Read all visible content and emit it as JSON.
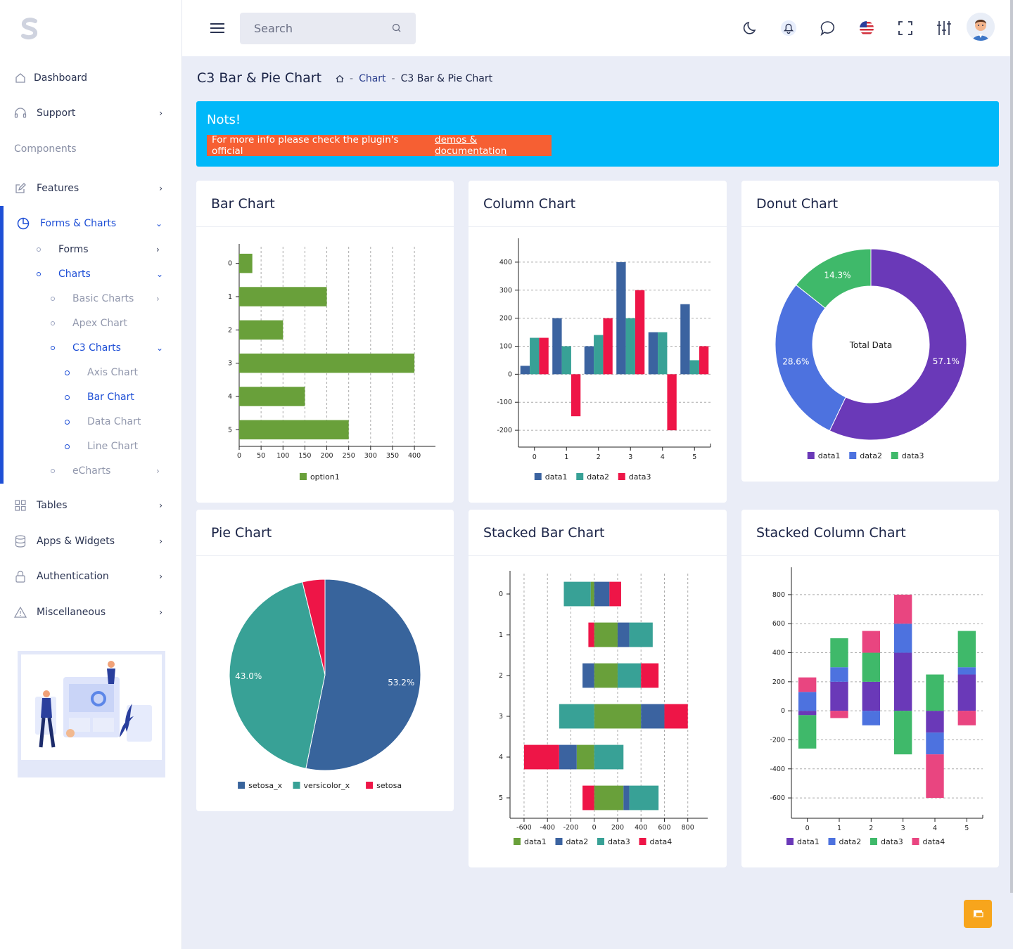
{
  "sidebar": {
    "items": {
      "dashboard": "Dashboard",
      "support": "Support",
      "components_section": "Components",
      "features": "Features",
      "forms_charts": "Forms & Charts",
      "forms": "Forms",
      "charts": "Charts",
      "basic_charts": "Basic Charts",
      "apex_chart": "Apex Chart",
      "c3_charts": "C3 Charts",
      "axis_chart": "Axis Chart",
      "bar_chart": "Bar Chart",
      "data_chart": "Data Chart",
      "line_chart": "Line Chart",
      "echarts": "eCharts",
      "tables": "Tables",
      "apps_widgets": "Apps & Widgets",
      "authentication": "Authentication",
      "miscellaneous": "Miscellaneous"
    }
  },
  "topbar": {
    "search_placeholder": "Search",
    "icons": [
      "moon-icon",
      "bell-icon",
      "chat-icon",
      "us-flag-icon",
      "fullscreen-icon",
      "sliders-icon"
    ]
  },
  "page": {
    "title": "C3 Bar & Pie Chart",
    "breadcrumb": [
      "Chart",
      "C3 Bar & Pie Chart"
    ],
    "sep": "-"
  },
  "alert": {
    "title": "Nots!",
    "text": "For more info please check the plugin's official",
    "link": "demos & documentation"
  },
  "cards": {
    "bar": "Bar Chart",
    "column": "Column Chart",
    "donut": "Donut Chart",
    "pie": "Pie Chart",
    "stacked_bar": "Stacked Bar Chart",
    "stacked_column": "Stacked Column Chart"
  },
  "colors": {
    "accent": "#1e4fd6",
    "alert": "#00b8f9",
    "alert_box": "#f65f33",
    "fab": "#f7a51c"
  },
  "chart_data": [
    {
      "id": "bar",
      "type": "bar",
      "orientation": "horizontal",
      "categories": [
        "0",
        "1",
        "2",
        "3",
        "4",
        "5"
      ],
      "series": [
        {
          "name": "option1",
          "color": "#69a03a",
          "values": [
            30,
            200,
            100,
            400,
            150,
            250
          ]
        }
      ],
      "xticks": [
        0,
        50,
        100,
        150,
        200,
        250,
        300,
        350,
        400
      ],
      "xlim": [
        0,
        440
      ],
      "grid": "vertical dashed",
      "legend": "bottom"
    },
    {
      "id": "column",
      "type": "bar",
      "categories": [
        "0",
        "1",
        "2",
        "3",
        "4",
        "5"
      ],
      "series": [
        {
          "name": "data1",
          "color": "#3b63a0",
          "values": [
            30,
            200,
            100,
            400,
            150,
            250
          ]
        },
        {
          "name": "data2",
          "color": "#38a196",
          "values": [
            130,
            100,
            140,
            200,
            150,
            50
          ]
        },
        {
          "name": "data3",
          "color": "#ee1547",
          "values": [
            130,
            -150,
            200,
            300,
            -200,
            100
          ]
        }
      ],
      "yticks": [
        -200,
        -100,
        0,
        100,
        200,
        300,
        400
      ],
      "ylim": [
        -260,
        460
      ],
      "grid": "horizontal dashed",
      "legend": "bottom"
    },
    {
      "id": "donut",
      "type": "pie",
      "donut": true,
      "center_title": "Total Data",
      "slices": [
        {
          "name": "data1",
          "color": "#6a39b8",
          "value": 57.1,
          "label": "57.1%"
        },
        {
          "name": "data2",
          "color": "#4d72df",
          "value": 28.6,
          "label": "28.6%"
        },
        {
          "name": "data3",
          "color": "#3fb96a",
          "value": 14.3,
          "label": "14.3%"
        }
      ],
      "legend": "bottom"
    },
    {
      "id": "pie",
      "type": "pie",
      "slices": [
        {
          "name": "setosa_x",
          "color": "#38649c",
          "value": 53.2,
          "label": "53.2%"
        },
        {
          "name": "versicolor_x",
          "color": "#38a196",
          "value": 43.0,
          "label": "43.0%"
        },
        {
          "name": "setosa",
          "color": "#ee1547",
          "value": 3.8,
          "label": ""
        }
      ],
      "legend": "bottom"
    },
    {
      "id": "stacked_bar",
      "type": "bar",
      "orientation": "horizontal",
      "stacked": true,
      "categories": [
        "0",
        "1",
        "2",
        "3",
        "4",
        "5"
      ],
      "series": [
        {
          "name": "data1",
          "color": "#69a03a",
          "values": [
            -30,
            200,
            200,
            400,
            -150,
            250
          ]
        },
        {
          "name": "data2",
          "color": "#3b63a0",
          "values": [
            130,
            100,
            -100,
            200,
            -150,
            50
          ]
        },
        {
          "name": "data3",
          "color": "#38a196",
          "values": [
            -230,
            200,
            200,
            -300,
            250,
            250
          ]
        },
        {
          "name": "data4",
          "color": "#ee1547",
          "values": [
            100,
            -50,
            150,
            200,
            -300,
            -100
          ]
        }
      ],
      "xticks": [
        -600,
        -400,
        -200,
        0,
        200,
        400,
        600,
        800
      ],
      "xlim": [
        -720,
        940
      ],
      "grid": "vertical dashed",
      "legend": "bottom"
    },
    {
      "id": "stacked_column",
      "type": "bar",
      "stacked": true,
      "categories": [
        "0",
        "1",
        "2",
        "3",
        "4",
        "5"
      ],
      "series": [
        {
          "name": "data1",
          "color": "#6a39b8",
          "values": [
            -30,
            200,
            200,
            400,
            -150,
            250
          ]
        },
        {
          "name": "data2",
          "color": "#4d72df",
          "values": [
            130,
            100,
            -100,
            200,
            -150,
            50
          ]
        },
        {
          "name": "data3",
          "color": "#3fb96a",
          "values": [
            -230,
            200,
            200,
            -300,
            250,
            250
          ]
        },
        {
          "name": "data4",
          "color": "#e94580",
          "values": [
            100,
            -50,
            150,
            200,
            -300,
            -100
          ]
        }
      ],
      "yticks": [
        -600,
        -400,
        -200,
        0,
        200,
        400,
        600,
        800
      ],
      "ylim": [
        -740,
        940
      ],
      "grid": "horizontal dashed",
      "legend": "bottom"
    }
  ]
}
